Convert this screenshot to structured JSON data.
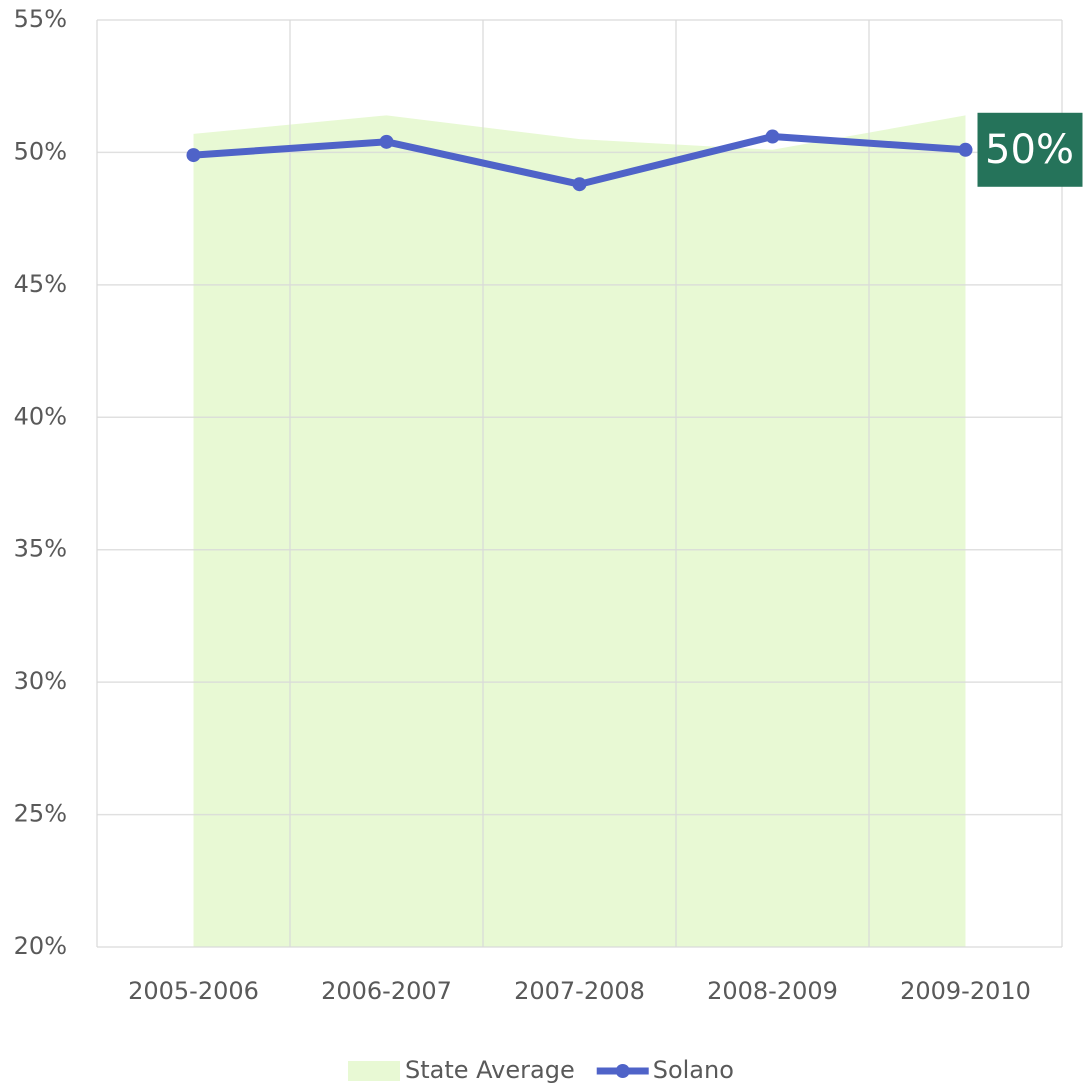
{
  "chart_data": {
    "type": "line",
    "categories": [
      "2005-2006",
      "2006-2007",
      "2007-2008",
      "2008-2009",
      "2009-2010"
    ],
    "series": [
      {
        "name": "State Average",
        "type": "area",
        "color": "#e8f9d4",
        "values": [
          50.7,
          51.4,
          50.5,
          50.1,
          51.4
        ]
      },
      {
        "name": "Solano",
        "type": "line",
        "color": "#4f63c8",
        "values": [
          49.9,
          50.4,
          48.8,
          50.6,
          50.1
        ],
        "value_labels": [
          null,
          null,
          null,
          null,
          "50%"
        ],
        "label_color": "#25735a"
      }
    ],
    "ylim": [
      20,
      55
    ],
    "yticks": [
      {
        "value": 20,
        "label": "20%"
      },
      {
        "value": 25,
        "label": "25%"
      },
      {
        "value": 30,
        "label": "30%"
      },
      {
        "value": 35,
        "label": "35%"
      },
      {
        "value": 40,
        "label": "40%"
      },
      {
        "value": 45,
        "label": "45%"
      },
      {
        "value": 50,
        "label": "50%"
      },
      {
        "value": 55,
        "label": "55%"
      }
    ],
    "grid": true,
    "legend": "bottom"
  }
}
